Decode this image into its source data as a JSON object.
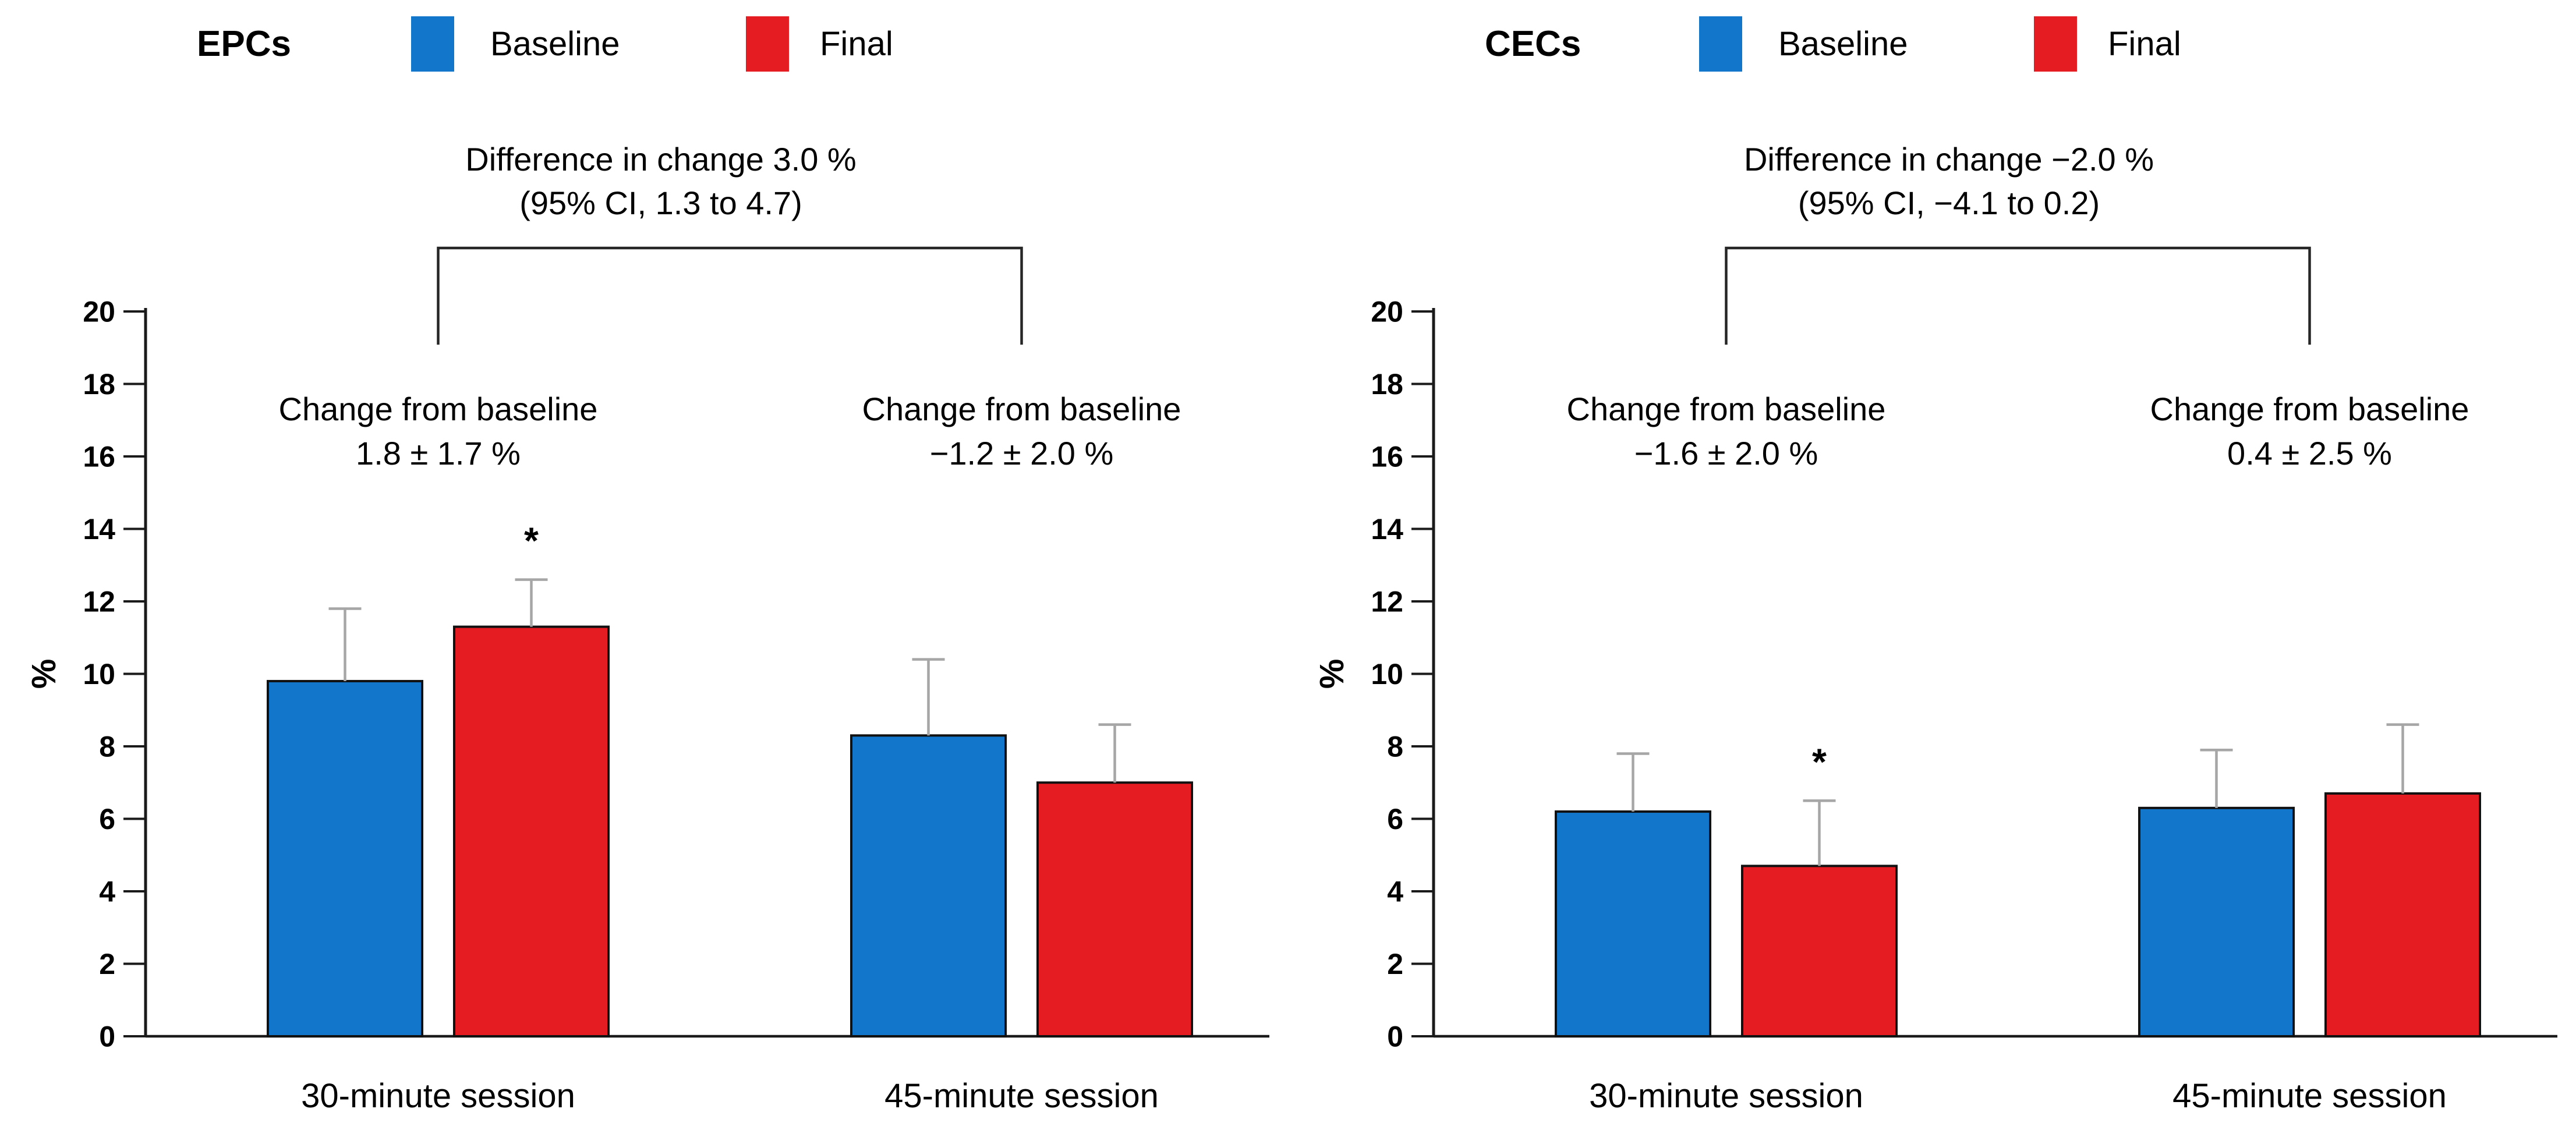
{
  "figure": {
    "background": "#FFFFFF",
    "colors": {
      "baseline": "#1277CB",
      "final": "#E51D23",
      "axis": "#1A1A1A",
      "error_bar": "#A6A6A6",
      "bracket": "#262626"
    }
  },
  "chart_data": [
    {
      "type": "bar",
      "panel_title": "EPCs",
      "ylabel": "%",
      "ylim": [
        0,
        20
      ],
      "ytick_step": 2,
      "grid": false,
      "legend_position": "top",
      "categories": [
        "30-minute session",
        "45-minute session"
      ],
      "series": [
        {
          "name": "Baseline",
          "color": "#1277CB",
          "values": [
            9.8,
            8.3
          ],
          "errors_plus": [
            2.0,
            2.1
          ]
        },
        {
          "name": "Final",
          "color": "#E51D23",
          "values": [
            11.3,
            7.0
          ],
          "errors_plus": [
            1.3,
            1.6
          ]
        }
      ],
      "significance_markers": [
        {
          "category_index": 0,
          "series_index": 1,
          "symbol": "*"
        }
      ],
      "difference_annotation": {
        "line1": "Difference in change 3.0 %",
        "line2": "(95% CI, 1.3 to 4.7)"
      },
      "group_annotations": [
        {
          "line1": "Change from baseline",
          "line2": "1.8 ± 1.7 %"
        },
        {
          "line1": "Change from baseline",
          "line2": "−1.2 ± 2.0 %"
        }
      ]
    },
    {
      "type": "bar",
      "panel_title": "CECs",
      "ylabel": "%",
      "ylim": [
        0,
        20
      ],
      "ytick_step": 2,
      "grid": false,
      "legend_position": "top",
      "categories": [
        "30-minute session",
        "45-minute session"
      ],
      "series": [
        {
          "name": "Baseline",
          "color": "#1277CB",
          "values": [
            6.2,
            6.3
          ],
          "errors_plus": [
            1.6,
            1.6
          ]
        },
        {
          "name": "Final",
          "color": "#E51D23",
          "values": [
            4.7,
            6.7
          ],
          "errors_plus": [
            1.8,
            1.9
          ]
        }
      ],
      "significance_markers": [
        {
          "category_index": 0,
          "series_index": 1,
          "symbol": "*"
        }
      ],
      "difference_annotation": {
        "line1": "Difference in change −2.0 %",
        "line2": "(95% CI, −4.1 to 0.2)"
      },
      "group_annotations": [
        {
          "line1": "Change from baseline",
          "line2": "−1.6 ± 2.0 %"
        },
        {
          "line1": "Change from baseline",
          "line2": "0.4 ± 2.5 %"
        }
      ]
    }
  ]
}
